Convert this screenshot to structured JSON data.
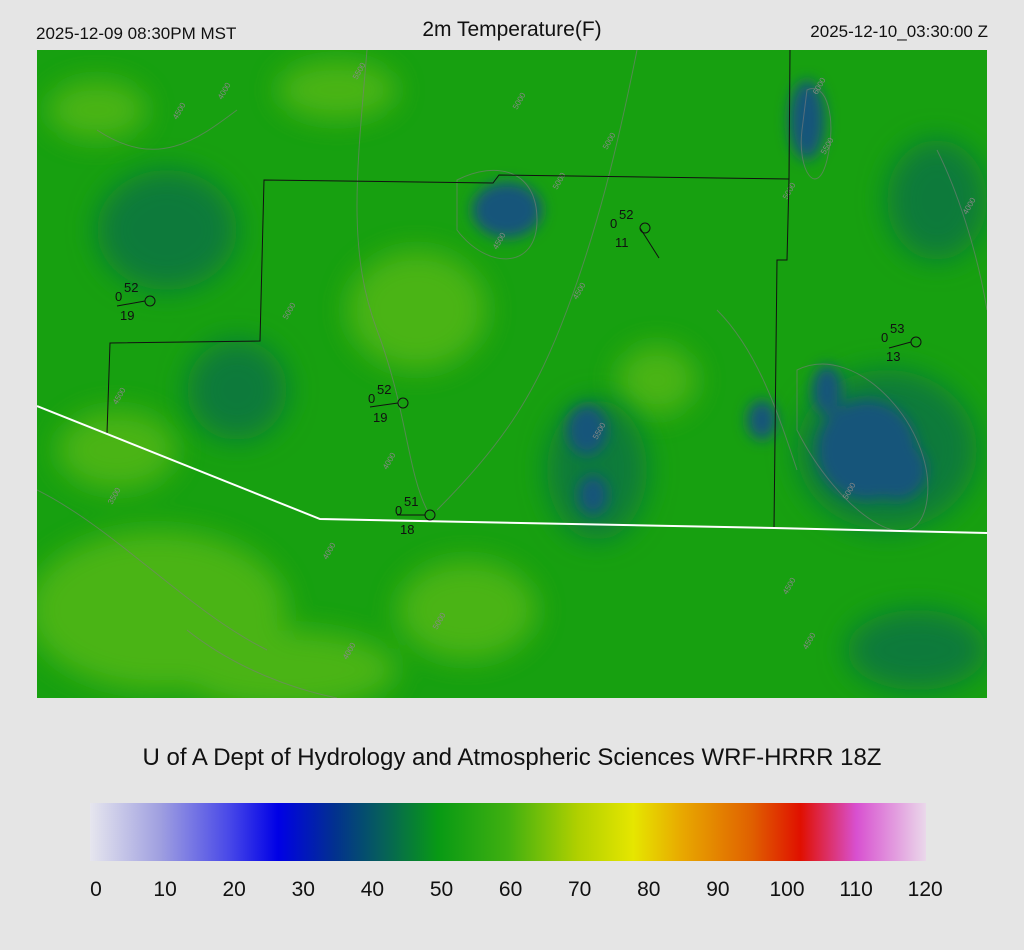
{
  "header": {
    "local_time": "2025-12-09 08:30PM MST",
    "title": "2m Temperature(F)",
    "utc_time": "2025-12-10_03:30:00 Z"
  },
  "credit": "U of A Dept of Hydrology and Atmospheric Sciences WRF-HRRR 18Z",
  "colorbar": {
    "ticks": [
      "0",
      "10",
      "20",
      "30",
      "40",
      "50",
      "60",
      "70",
      "80",
      "90",
      "100",
      "110",
      "120"
    ],
    "stops": [
      {
        "value": 0,
        "color": "#e6e6ee"
      },
      {
        "value": 10,
        "color": "#a0a0e0"
      },
      {
        "value": 20,
        "color": "#4848e8"
      },
      {
        "value": 27,
        "color": "#0000e6"
      },
      {
        "value": 35,
        "color": "#023090"
      },
      {
        "value": 42,
        "color": "#06605a"
      },
      {
        "value": 50,
        "color": "#089a14"
      },
      {
        "value": 60,
        "color": "#40b010"
      },
      {
        "value": 70,
        "color": "#b0d000"
      },
      {
        "value": 78,
        "color": "#e6e600"
      },
      {
        "value": 85,
        "color": "#e8a800"
      },
      {
        "value": 95,
        "color": "#e06000"
      },
      {
        "value": 102,
        "color": "#e01000"
      },
      {
        "value": 110,
        "color": "#d850d0"
      },
      {
        "value": 120,
        "color": "#ead8ea"
      }
    ]
  },
  "map": {
    "base_color": "#17a010",
    "contour_labels": [
      "5500",
      "4000",
      "4500",
      "5000",
      "5000",
      "4500",
      "5000",
      "6000",
      "5500",
      "4000",
      "5000",
      "5500",
      "4500",
      "5000",
      "4500",
      "4000",
      "3500",
      "4000",
      "5000",
      "4500",
      "5000",
      "4500",
      "4000"
    ],
    "stations": [
      {
        "temp": "52",
        "vis": "0",
        "dew": "19"
      },
      {
        "temp": "52",
        "vis": "0",
        "dew": "11"
      },
      {
        "temp": "53",
        "vis": "0",
        "dew": "13"
      },
      {
        "temp": "52",
        "vis": "0",
        "dew": "19"
      },
      {
        "temp": "51",
        "vis": "0",
        "dew": "18"
      }
    ]
  }
}
